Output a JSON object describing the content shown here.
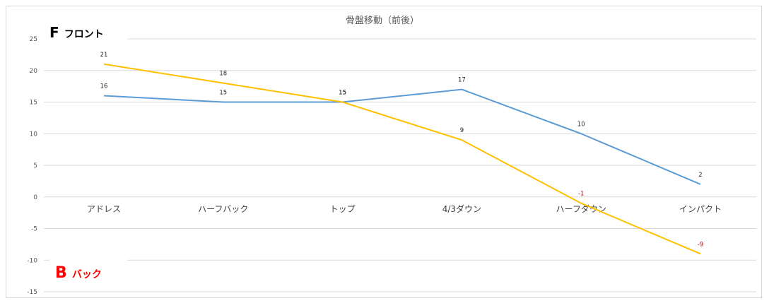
{
  "chart_data": {
    "type": "line",
    "title": "骨盤移動（前後）",
    "categories": [
      "アドレス",
      "ハーフバック",
      "トップ",
      "4/3ダウン",
      "ハーフダウン",
      "インパクト"
    ],
    "series": [
      {
        "values": [
          16,
          15,
          15,
          17,
          10,
          2
        ],
        "color": "#5b9bd5"
      },
      {
        "values": [
          21,
          18,
          15,
          9,
          -1,
          -9
        ],
        "color": "#ffc000"
      }
    ],
    "ylim": [
      -15,
      25
    ],
    "yticks": [
      25,
      20,
      15,
      10,
      5,
      0,
      -5,
      -10,
      -15
    ],
    "grid": true,
    "annotations": {
      "front_letter": "F",
      "front_text": "フロント",
      "back_letter": "B",
      "back_text": "バック"
    },
    "colors": {
      "front": "#000000",
      "back": "#ff0000",
      "negative_label": "#c00000"
    }
  }
}
